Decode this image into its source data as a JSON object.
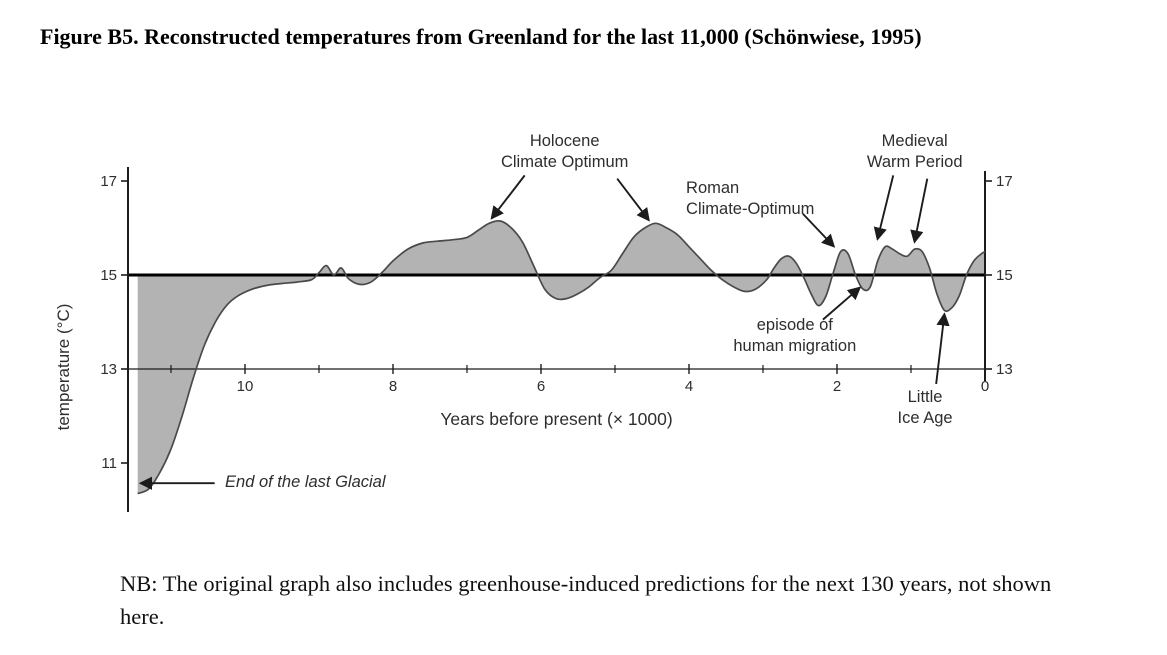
{
  "doc": {
    "title": "Figure B5. Reconstructed temperatures from Greenland for the last 11,000 (Schönwiese, 1995)",
    "note": "NB: The original graph also includes greenhouse-induced predictions for the next 130 years, not shown here."
  },
  "chart_data": {
    "type": "area",
    "description": "Reconstructed temperatures from Greenland for the last 11,000 years",
    "xlabel": "Years before present (× 1000)",
    "ylabel": "temperature (°C)",
    "xlim": [
      11.6,
      0
    ],
    "ylim": [
      10.2,
      17.4
    ],
    "x_ticks_major": [
      10,
      8,
      6,
      4,
      2,
      0
    ],
    "x_ticks_minor": [
      11,
      9,
      7,
      5,
      3,
      1
    ],
    "y_ticks_left": [
      17,
      15,
      13,
      11
    ],
    "y_ticks_right": [
      17,
      15,
      13
    ],
    "reference_line": 15,
    "axis_line_y": 13,
    "fill_color": "#b3b3b3",
    "line_color": "#4a4a4a",
    "ink_color": "#1c1c1c",
    "label_color": "#2e2e2e",
    "series": [
      {
        "name": "Greenland reconstructed temperature (°C)",
        "points": [
          [
            11.45,
            10.35
          ],
          [
            11.3,
            10.45
          ],
          [
            11.15,
            10.8
          ],
          [
            11.0,
            11.3
          ],
          [
            10.85,
            12.0
          ],
          [
            10.7,
            12.8
          ],
          [
            10.55,
            13.5
          ],
          [
            10.4,
            14.0
          ],
          [
            10.25,
            14.35
          ],
          [
            10.1,
            14.55
          ],
          [
            9.9,
            14.7
          ],
          [
            9.7,
            14.78
          ],
          [
            9.5,
            14.82
          ],
          [
            9.3,
            14.85
          ],
          [
            9.1,
            14.9
          ],
          [
            9.0,
            15.05
          ],
          [
            8.9,
            15.2
          ],
          [
            8.8,
            15.0
          ],
          [
            8.7,
            15.15
          ],
          [
            8.6,
            14.92
          ],
          [
            8.45,
            14.8
          ],
          [
            8.3,
            14.85
          ],
          [
            8.15,
            15.05
          ],
          [
            8.0,
            15.3
          ],
          [
            7.8,
            15.55
          ],
          [
            7.6,
            15.68
          ],
          [
            7.4,
            15.72
          ],
          [
            7.2,
            15.75
          ],
          [
            7.0,
            15.8
          ],
          [
            6.85,
            15.95
          ],
          [
            6.7,
            16.1
          ],
          [
            6.55,
            16.15
          ],
          [
            6.4,
            16.0
          ],
          [
            6.25,
            15.7
          ],
          [
            6.1,
            15.2
          ],
          [
            5.95,
            14.7
          ],
          [
            5.8,
            14.5
          ],
          [
            5.65,
            14.5
          ],
          [
            5.5,
            14.6
          ],
          [
            5.35,
            14.75
          ],
          [
            5.2,
            14.95
          ],
          [
            5.05,
            15.1
          ],
          [
            4.9,
            15.45
          ],
          [
            4.75,
            15.8
          ],
          [
            4.6,
            16.0
          ],
          [
            4.45,
            16.1
          ],
          [
            4.3,
            16.0
          ],
          [
            4.15,
            15.85
          ],
          [
            4.0,
            15.6
          ],
          [
            3.85,
            15.35
          ],
          [
            3.7,
            15.1
          ],
          [
            3.55,
            14.9
          ],
          [
            3.4,
            14.75
          ],
          [
            3.25,
            14.65
          ],
          [
            3.1,
            14.7
          ],
          [
            2.95,
            14.9
          ],
          [
            2.85,
            15.15
          ],
          [
            2.75,
            15.35
          ],
          [
            2.65,
            15.4
          ],
          [
            2.55,
            15.25
          ],
          [
            2.45,
            14.95
          ],
          [
            2.35,
            14.6
          ],
          [
            2.25,
            14.35
          ],
          [
            2.15,
            14.55
          ],
          [
            2.05,
            15.05
          ],
          [
            1.95,
            15.5
          ],
          [
            1.85,
            15.45
          ],
          [
            1.75,
            15.0
          ],
          [
            1.65,
            14.7
          ],
          [
            1.55,
            14.75
          ],
          [
            1.45,
            15.3
          ],
          [
            1.35,
            15.6
          ],
          [
            1.25,
            15.55
          ],
          [
            1.15,
            15.45
          ],
          [
            1.05,
            15.4
          ],
          [
            0.95,
            15.55
          ],
          [
            0.85,
            15.5
          ],
          [
            0.75,
            15.15
          ],
          [
            0.65,
            14.6
          ],
          [
            0.55,
            14.25
          ],
          [
            0.45,
            14.3
          ],
          [
            0.35,
            14.55
          ],
          [
            0.25,
            15.0
          ],
          [
            0.15,
            15.3
          ],
          [
            0.05,
            15.45
          ],
          [
            0.0,
            15.5
          ]
        ]
      }
    ],
    "annotations": [
      {
        "id": "holocene-climate-optimum",
        "lines": [
          "Holocene",
          "Climate Optimum"
        ],
        "x": 5.68,
        "y": 17.74,
        "anchor": "middle",
        "italic": false,
        "arrows": [
          {
            "x1": 6.22,
            "y1": 17.12,
            "x2": 6.66,
            "y2": 16.22
          },
          {
            "x1": 4.97,
            "y1": 17.05,
            "x2": 4.55,
            "y2": 16.18
          }
        ]
      },
      {
        "id": "roman-climate-optimum",
        "lines": [
          "Roman",
          "Climate-Optimum"
        ],
        "x": 4.04,
        "y": 16.74,
        "anchor": "start",
        "italic": false,
        "arrows": [
          {
            "x1": 2.46,
            "y1": 16.3,
            "x2": 2.05,
            "y2": 15.62
          }
        ]
      },
      {
        "id": "medieval-warm-period",
        "lines": [
          "Medieval",
          "Warm Period"
        ],
        "x": 0.95,
        "y": 17.74,
        "anchor": "middle",
        "italic": false,
        "arrows": [
          {
            "x1": 1.24,
            "y1": 17.12,
            "x2": 1.45,
            "y2": 15.78
          },
          {
            "x1": 0.78,
            "y1": 17.05,
            "x2": 0.95,
            "y2": 15.72
          }
        ]
      },
      {
        "id": "episode-of-human-migration",
        "lines": [
          "episode of",
          "human migration"
        ],
        "x": 2.57,
        "y": 13.83,
        "anchor": "middle",
        "italic": false,
        "arrows": [
          {
            "x1": 2.19,
            "y1": 14.05,
            "x2": 1.7,
            "y2": 14.72
          }
        ]
      },
      {
        "id": "little-ice-age",
        "lines": [
          "Little",
          "Ice Age"
        ],
        "x": 0.81,
        "y": 12.3,
        "anchor": "middle",
        "italic": false,
        "arrows": [
          {
            "x1": 0.66,
            "y1": 12.68,
            "x2": 0.55,
            "y2": 14.15
          }
        ]
      },
      {
        "id": "end-of-last-glacial",
        "lines": [
          "End of the last Glacial"
        ],
        "x": 10.27,
        "y": 10.49,
        "anchor": "start",
        "italic": true,
        "arrows": [
          {
            "x1": 10.41,
            "y1": 10.57,
            "x2": 11.4,
            "y2": 10.57
          }
        ]
      }
    ]
  }
}
